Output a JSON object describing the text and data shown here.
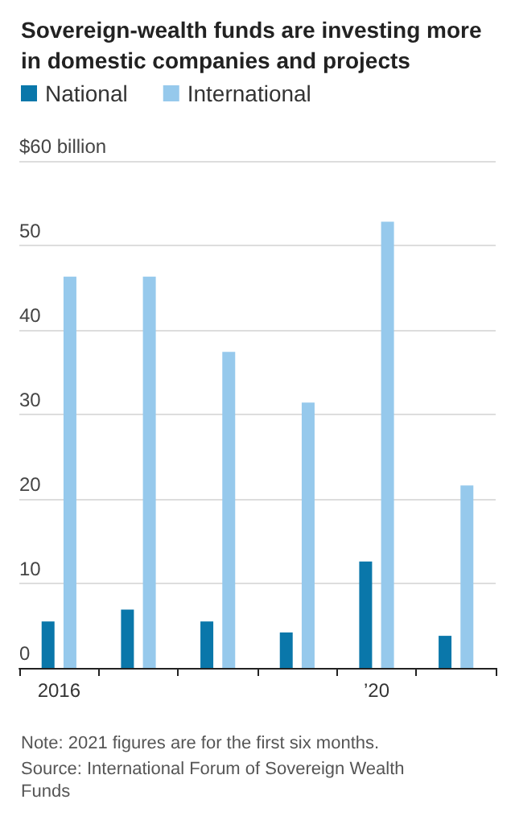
{
  "chart_data": {
    "type": "bar",
    "title": "Sovereign-wealth funds are investing more in domestic companies and projects",
    "categories": [
      "2016",
      null,
      null,
      null,
      "’20",
      null
    ],
    "series": [
      {
        "name": "National",
        "color": "#0a77aa",
        "values": [
          5.5,
          6.9,
          5.5,
          4.2,
          12.6,
          3.8
        ]
      },
      {
        "name": "International",
        "color": "#96c9ec",
        "values": [
          46.3,
          46.3,
          37.4,
          31.4,
          52.8,
          21.6
        ]
      }
    ],
    "ylim": [
      0,
      60
    ],
    "yticks": [
      0,
      10,
      20,
      30,
      40,
      50,
      {
        "value": 60,
        "label": "$60 billion"
      }
    ],
    "grid": "y",
    "legend": "top left",
    "annotations": [
      "Note: 2021 figures are for the first six months.",
      "Source: International Forum of Sovereign Wealth Funds"
    ]
  }
}
